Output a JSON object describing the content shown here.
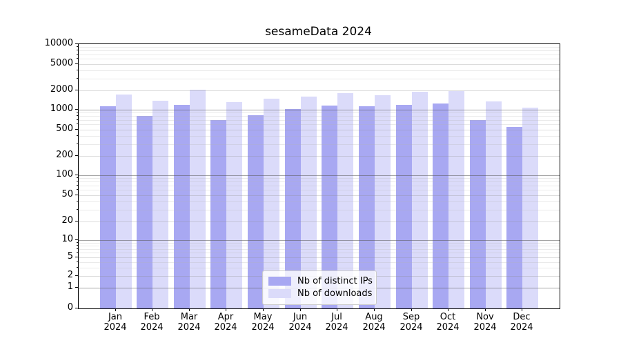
{
  "chart_data": {
    "type": "bar",
    "title": "sesameData 2024",
    "months": [
      "Jan",
      "Feb",
      "Mar",
      "Apr",
      "May",
      "Jun",
      "Jul",
      "Aug",
      "Sep",
      "Oct",
      "Nov",
      "Dec"
    ],
    "year": "2024",
    "categories": [
      "Jan 2024",
      "Feb 2024",
      "Mar 2024",
      "Apr 2024",
      "May 2024",
      "Jun 2024",
      "Jul 2024",
      "Aug 2024",
      "Sep 2024",
      "Oct 2024",
      "Nov 2024",
      "Dec 2024"
    ],
    "series": [
      {
        "name": "Nb of distinct IPs",
        "color": "#a8a8f2",
        "values": [
          1130,
          815,
          1200,
          705,
          835,
          1015,
          1155,
          1130,
          1200,
          1240,
          705,
          555
        ]
      },
      {
        "name": "Nb of downloads",
        "color": "#dbdbfa",
        "values": [
          1720,
          1380,
          2030,
          1320,
          1470,
          1600,
          1800,
          1690,
          1880,
          1950,
          1350,
          1080
        ]
      }
    ],
    "yscale": "symlog",
    "ylim": [
      0,
      10000
    ],
    "y_ticks": [
      0,
      1,
      2,
      5,
      10,
      20,
      50,
      100,
      200,
      500,
      1000,
      2000,
      5000,
      10000
    ],
    "grid": true,
    "legend_position": "lower center"
  }
}
